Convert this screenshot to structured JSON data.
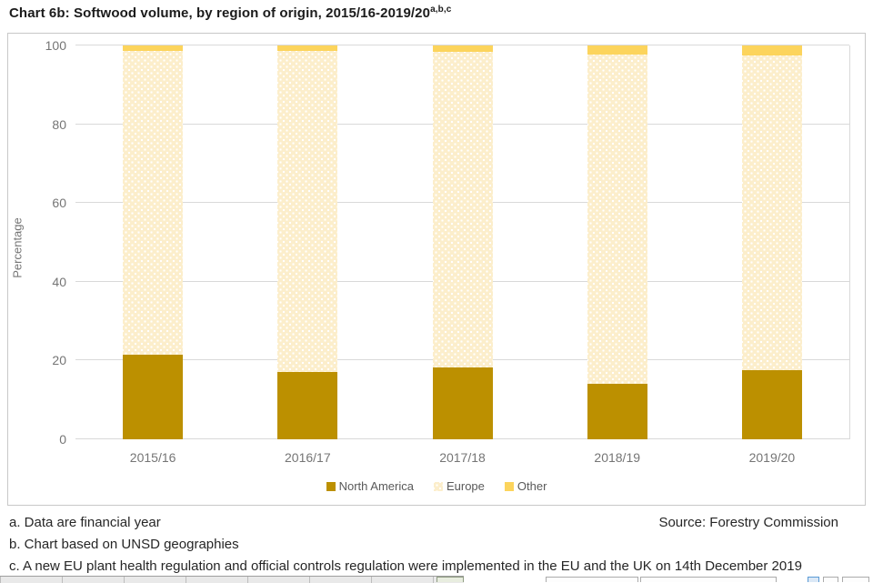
{
  "title": {
    "text": "Chart 6b: Softwood volume, by region of origin, 2015/16-2019/20",
    "superscript": "a,b,c"
  },
  "chart_data": {
    "type": "bar",
    "stacked": true,
    "title": "Chart 6b: Softwood volume, by region of origin, 2015/16-2019/20",
    "categories": [
      "2015/16",
      "2016/17",
      "2017/18",
      "2018/19",
      "2019/20"
    ],
    "series": [
      {
        "name": "North America",
        "color": "#BC9000",
        "pattern": "solid",
        "values": [
          21.5,
          17.0,
          18.3,
          14.0,
          17.5
        ]
      },
      {
        "name": "Europe",
        "color": "#FCEECB",
        "pattern": "dotted",
        "values": [
          77.2,
          81.7,
          80.2,
          83.7,
          80.0
        ]
      },
      {
        "name": "Other",
        "color": "#FCD45C",
        "pattern": "solid",
        "values": [
          1.3,
          1.3,
          1.5,
          2.3,
          2.5
        ]
      }
    ],
    "xlabel": "",
    "ylabel": "Percentage",
    "ylim": [
      0,
      100
    ],
    "yticks": [
      0,
      20,
      40,
      60,
      80,
      100
    ],
    "grid": true,
    "legend_position": "bottom"
  },
  "footnotes": {
    "a": "a. Data are financial year",
    "source": "Source: Forestry Commission",
    "b": "b. Chart based on UNSD geographies",
    "c": "c. A new EU plant health regulation and official controls regulation were implemented in the EU and the UK on 14th December 2019"
  },
  "colors": {
    "north_america": "#BC9000",
    "europe": "#FCEECB",
    "other": "#FCD45C",
    "gridline": "#D9D9D9",
    "panel_border": "#C8C8C8",
    "axis_text": "#757575",
    "legend_text": "#595959",
    "footnote_text": "#262626"
  }
}
